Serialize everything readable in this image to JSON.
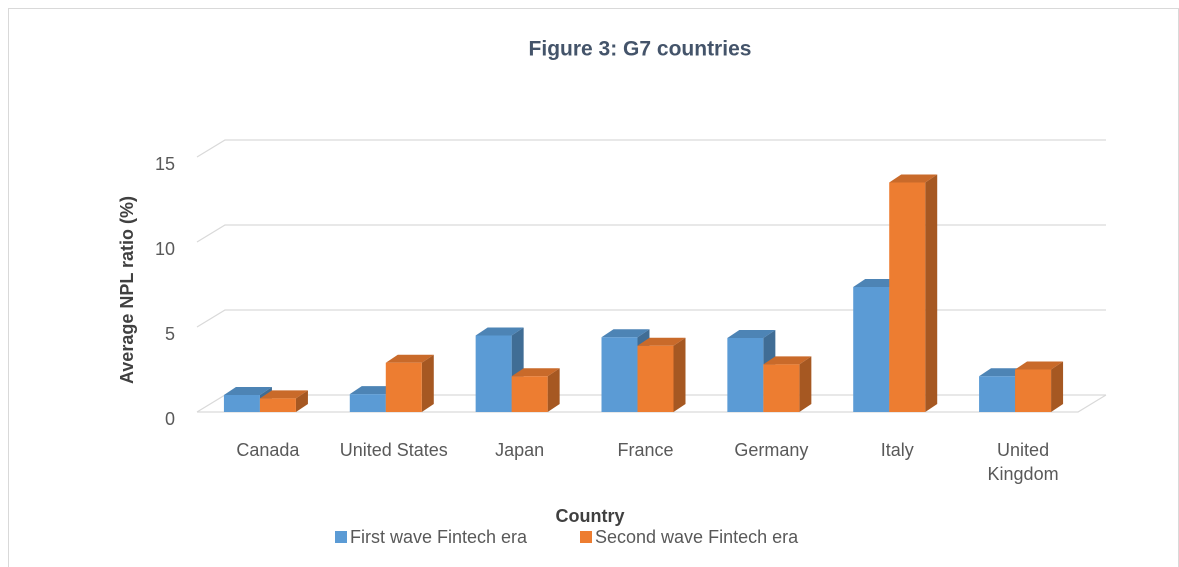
{
  "chart_data": {
    "type": "bar3d",
    "title": "Figure 3: G7 countries",
    "x_label": "Country",
    "y_label": "Average NPL ratio (%)",
    "categories": [
      "Canada",
      "United States",
      "Japan",
      "France",
      "Germany",
      "Italy",
      "United Kingdom"
    ],
    "series": [
      {
        "name": "First wave Fintech era",
        "color": "#5b9bd5",
        "values": [
          1.0,
          1.05,
          4.5,
          4.4,
          4.35,
          7.35,
          2.1
        ]
      },
      {
        "name": "Second wave Fintech era",
        "color": "#ed7d31",
        "values": [
          0.8,
          2.9,
          2.1,
          3.9,
          2.8,
          13.5,
          2.5
        ]
      }
    ],
    "ylim": [
      0,
      15
    ],
    "yticks": [
      0,
      5,
      10,
      15
    ],
    "grid": true
  }
}
